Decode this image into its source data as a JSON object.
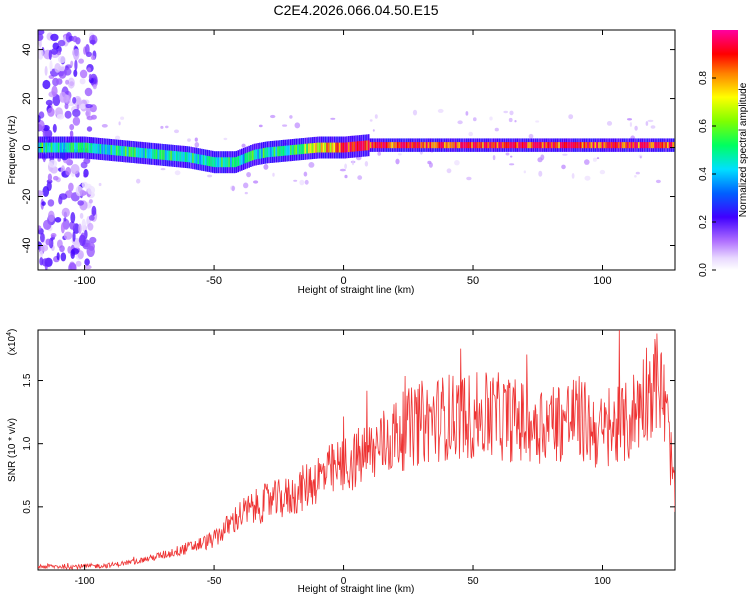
{
  "title": "C2E4.2026.066.04.50.E15",
  "chart_data": [
    {
      "type": "heatmap",
      "name": "spectrogram",
      "xlabel": "Height of straight line (km)",
      "ylabel": "Frequency (Hz)",
      "xlim": [
        -118,
        128
      ],
      "ylim": [
        -50,
        48
      ],
      "xticks": [
        -100,
        -50,
        0,
        50,
        100
      ],
      "yticks": [
        -40,
        -20,
        0,
        20,
        40
      ],
      "colorbar": {
        "label": "Normalized spectral amplitude",
        "range": [
          0,
          1
        ],
        "ticks": [
          0.0,
          0.2,
          0.4,
          0.6,
          0.8
        ],
        "tick_labels": [
          "0.0",
          "0.2",
          "0.4",
          "0.6",
          "0.8"
        ]
      },
      "ridge_center_hz": [
        [
          -118,
          0
        ],
        [
          -100,
          0
        ],
        [
          -90,
          -1
        ],
        [
          -80,
          -2
        ],
        [
          -70,
          -3
        ],
        [
          -60,
          -4
        ],
        [
          -50,
          -6
        ],
        [
          -42,
          -6
        ],
        [
          -35,
          -3
        ],
        [
          -30,
          -2
        ],
        [
          -20,
          -1
        ],
        [
          -10,
          0
        ],
        [
          0,
          0
        ],
        [
          10,
          1
        ],
        [
          30,
          1
        ],
        [
          50,
          1
        ],
        [
          80,
          1
        ],
        [
          100,
          1
        ],
        [
          128,
          1
        ]
      ]
    },
    {
      "type": "line",
      "name": "snr",
      "xlabel": "Height of straight line (km)",
      "ylabel": "SNR (10 * v/v)",
      "multiplier_label": "(x10",
      "multiplier_exp": "4",
      "xlim": [
        -118,
        128
      ],
      "ylim": [
        0,
        1.9
      ],
      "xticks": [
        -100,
        -50,
        0,
        50,
        100
      ],
      "yticks": [
        0.5,
        1.0,
        1.5
      ],
      "ytick_labels": [
        "0.5",
        "1.0",
        "1.5"
      ],
      "color": "#ee3333",
      "series_envelope": [
        [
          -118,
          0.03
        ],
        [
          -100,
          0.03
        ],
        [
          -90,
          0.04
        ],
        [
          -80,
          0.07
        ],
        [
          -70,
          0.12
        ],
        [
          -60,
          0.18
        ],
        [
          -50,
          0.25
        ],
        [
          -40,
          0.45
        ],
        [
          -30,
          0.55
        ],
        [
          -20,
          0.6
        ],
        [
          -10,
          0.75
        ],
        [
          0,
          0.85
        ],
        [
          10,
          0.95
        ],
        [
          20,
          1.1
        ],
        [
          30,
          1.2
        ],
        [
          40,
          1.25
        ],
        [
          50,
          1.25
        ],
        [
          60,
          1.25
        ],
        [
          70,
          1.2
        ],
        [
          80,
          1.2
        ],
        [
          90,
          1.25
        ],
        [
          100,
          1.1
        ],
        [
          110,
          1.2
        ],
        [
          118,
          1.5
        ],
        [
          122,
          1.55
        ],
        [
          125,
          1.2
        ],
        [
          128,
          0.6
        ]
      ]
    }
  ]
}
